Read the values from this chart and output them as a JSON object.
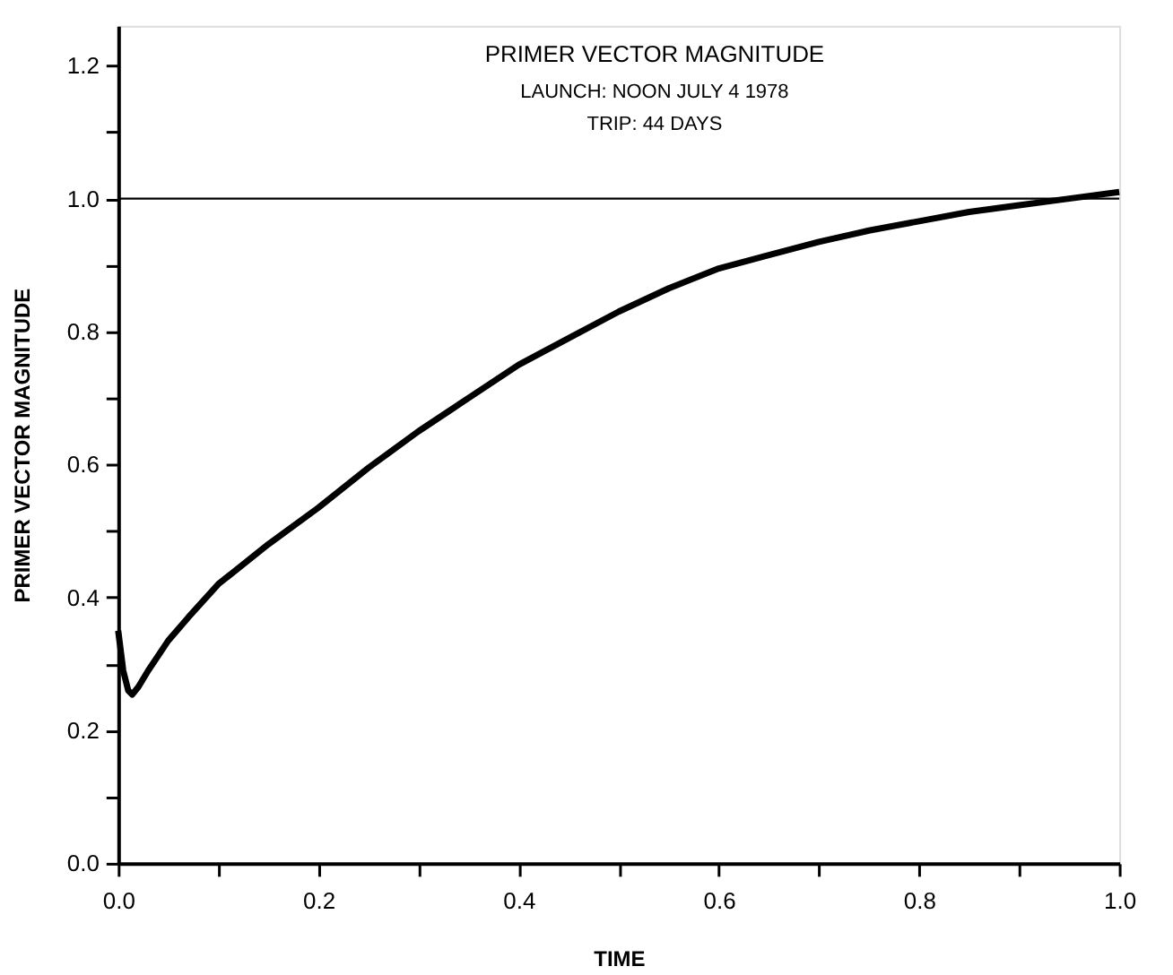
{
  "chart_data": {
    "type": "line",
    "title": "PRIMER VECTOR MAGNITUDE",
    "subtitle": "LAUNCH:  NOON JULY 4 1978\nTRIP:  44 DAYS",
    "xlabel": "TIME",
    "ylabel": "PRIMER VECTOR MAGNITUDE",
    "series": [
      {
        "color": "#000000",
        "x": [
          0.0,
          0.005,
          0.01,
          0.014,
          0.02,
          0.03,
          0.05,
          0.07,
          0.1,
          0.15,
          0.2,
          0.25,
          0.3,
          0.35,
          0.4,
          0.45,
          0.5,
          0.55,
          0.6,
          0.65,
          0.7,
          0.75,
          0.8,
          0.85,
          0.9,
          0.95,
          1.0
        ],
        "values": [
          0.35,
          0.29,
          0.26,
          0.254,
          0.265,
          0.29,
          0.335,
          0.37,
          0.42,
          0.48,
          0.535,
          0.595,
          0.65,
          0.7,
          0.75,
          0.79,
          0.83,
          0.865,
          0.895,
          0.915,
          0.935,
          0.952,
          0.966,
          0.98,
          0.99,
          1.0,
          1.01
        ]
      }
    ],
    "ref_lines": [
      {
        "axis": "y",
        "value": 1.0,
        "color": "#000000"
      }
    ],
    "xlim": [
      0,
      1.0
    ],
    "ylim": [
      0,
      1.26
    ],
    "xticks": [
      {
        "value": 0,
        "label": "0.0"
      },
      {
        "value": 0.1,
        "label": null
      },
      0.2,
      {
        "value": 0.3,
        "label": null
      },
      0.4,
      {
        "value": 0.5,
        "label": null
      },
      0.6,
      {
        "value": 0.7,
        "label": null
      },
      0.8,
      {
        "value": 0.9,
        "label": null
      },
      {
        "value": 1,
        "label": "1.0"
      }
    ],
    "yticks": [
      {
        "value": 0,
        "label": "0.0"
      },
      {
        "value": 0.1,
        "label": null
      },
      0.2,
      {
        "value": 0.3,
        "label": null
      },
      0.4,
      {
        "value": 0.5,
        "label": null
      },
      0.6,
      {
        "value": 0.7,
        "label": null
      },
      0.8,
      {
        "value": 0.9,
        "label": null
      },
      {
        "value": 1,
        "label": "1.0"
      },
      {
        "value": 1.1,
        "label": null
      },
      1.2
    ],
    "grid": false,
    "marker": "none",
    "line_style": "solid"
  }
}
